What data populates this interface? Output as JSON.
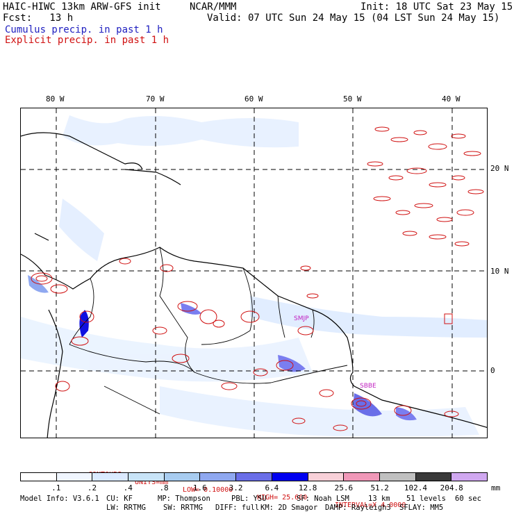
{
  "header": {
    "model_title": "HAIC-HIWC 13km ARW-GFS init",
    "org": "NCAR/MMM",
    "init": "Init: 18 UTC Sat 23 May 15",
    "fcst": "Fcst:   13 h",
    "valid": "Valid: 07 UTC Sun 24 May 15 (04 LST Sun 24 May 15)",
    "cumulus": "Cumulus precip. in past 1 h",
    "explicit": "Explicit precip. in past 1 h"
  },
  "map": {
    "lon_labels": [
      "80 W",
      "70 W",
      "60 W",
      "50 W",
      "40 W"
    ],
    "lat_labels": [
      "20 N",
      "10 N",
      "0"
    ],
    "stations": [
      "SMJP",
      "SBBE"
    ],
    "colors": {
      "cumulus": "#2020c0",
      "explicit": "#d01010",
      "station": "#c020c0"
    }
  },
  "contours": {
    "label": "CONTOURS:",
    "units": "UNITS=mm",
    "low": "LOW= 0.10000",
    "high": "HIGH= 25.600",
    "interval": "INTERVAL=X 4.0000"
  },
  "colorbar": {
    "labels": [
      ".1",
      ".2",
      ".4",
      ".8",
      "1.6",
      "3.2",
      "6.4",
      "12.8",
      "25.6",
      "51.2",
      "102.4",
      "204.8"
    ],
    "colors": [
      "#ffffff",
      "#f0f6ff",
      "#dbeaff",
      "#c8e4f8",
      "#a8ccf0",
      "#8fa8f0",
      "#6a6ee8",
      "#0000f0",
      "#f8d0d8",
      "#f098b8",
      "#c0c0c0",
      "#3a3a3a",
      "#d0a8f0"
    ],
    "unit": "mm"
  },
  "footer": {
    "line1": [
      "Model Info: V3.6.1",
      "CU: KF",
      "MP: Thompson",
      "PBL: YSU",
      "SF: Noah LSM",
      "13 km",
      "51 levels",
      "60 sec"
    ],
    "line2": [
      "LW: RRTMG",
      "SW: RRTMG",
      "DIFF: full",
      "KM: 2D Smagor",
      "DAMP: Rayleigh3",
      "SFLAY: MM5"
    ]
  }
}
